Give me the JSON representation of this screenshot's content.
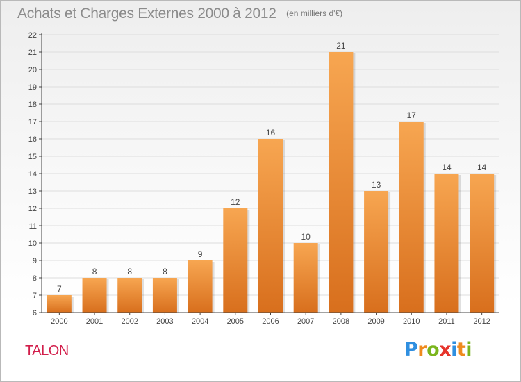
{
  "header": {
    "title": "Achats et Charges Externes 2000 à 2012",
    "unit": "(en milliers d'€)"
  },
  "commune": "TALON",
  "logo": {
    "text": "Proxiti",
    "letters": [
      {
        "char": "P",
        "color": "#2f8fe0"
      },
      {
        "char": "r",
        "color": "#ef8a1d"
      },
      {
        "char": "o",
        "color": "#7ab51d"
      },
      {
        "char": "x",
        "color": "#e6332a"
      },
      {
        "char": "i",
        "color": "#2f8fe0"
      },
      {
        "char": "t",
        "color": "#ef8a1d"
      },
      {
        "char": "i",
        "color": "#7ab51d"
      }
    ]
  },
  "colors": {
    "bar_top": "#f7a651",
    "bar_bottom": "#d86f1d",
    "axis": "#444444",
    "grid": "#dddddd",
    "text": "#444444"
  },
  "chart_data": {
    "type": "bar",
    "title": "Achats et Charges Externes 2000 à 2012",
    "xlabel": "",
    "ylabel": "",
    "categories": [
      "2000",
      "2001",
      "2002",
      "2003",
      "2004",
      "2005",
      "2006",
      "2007",
      "2008",
      "2009",
      "2010",
      "2011",
      "2012"
    ],
    "values": [
      7,
      8,
      8,
      8,
      9,
      12,
      16,
      10,
      21,
      13,
      17,
      14,
      14
    ],
    "ylim": [
      6,
      22
    ],
    "yticks": [
      6,
      7,
      8,
      9,
      10,
      11,
      12,
      13,
      14,
      15,
      16,
      17,
      18,
      19,
      20,
      21,
      22
    ],
    "grid": true,
    "data_labels": true
  }
}
